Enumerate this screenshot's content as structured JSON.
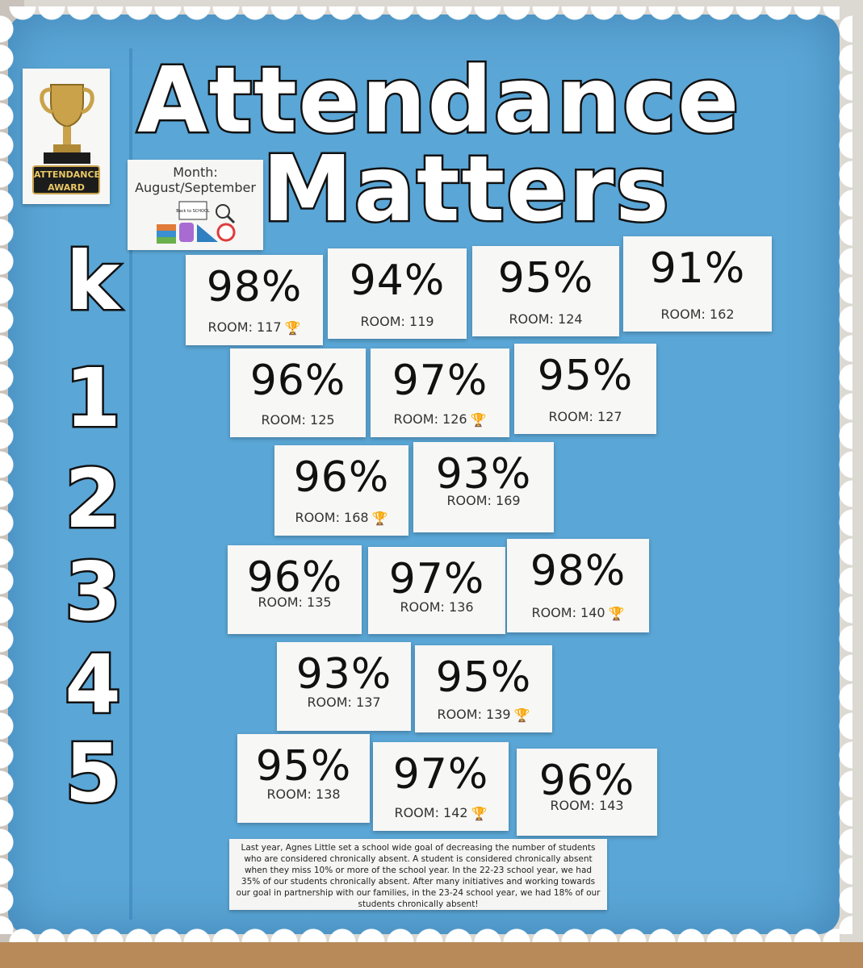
{
  "award": {
    "line1": "ATTENDANCE",
    "line2": "AWARD"
  },
  "title": {
    "line1": "Attendance",
    "line2": "Matters"
  },
  "month": {
    "label": "Month:",
    "value": "August/September",
    "badge": "Back to SCHOOL"
  },
  "grades": [
    "k",
    "1",
    "2",
    "3",
    "4",
    "5"
  ],
  "cards": [
    {
      "pct": "98%",
      "room": "ROOM: 117",
      "trophy": true
    },
    {
      "pct": "94%",
      "room": "ROOM: 119",
      "trophy": false
    },
    {
      "pct": "95%",
      "room": "ROOM: 124",
      "trophy": false
    },
    {
      "pct": "91%",
      "room": "ROOM: 162",
      "trophy": false
    },
    {
      "pct": "96%",
      "room": "ROOM: 125",
      "trophy": false
    },
    {
      "pct": "97%",
      "room": "ROOM: 126",
      "trophy": true
    },
    {
      "pct": "95%",
      "room": "ROOM: 127",
      "trophy": false
    },
    {
      "pct": "96%",
      "room": "ROOM: 168",
      "trophy": true
    },
    {
      "pct": "93%",
      "room": "ROOM: 169",
      "trophy": false
    },
    {
      "pct": "96%",
      "room": "ROOM: 135",
      "trophy": false
    },
    {
      "pct": "97%",
      "room": "ROOM: 136",
      "trophy": false
    },
    {
      "pct": "98%",
      "room": "ROOM: 140",
      "trophy": true
    },
    {
      "pct": "93%",
      "room": "ROOM: 137",
      "trophy": false
    },
    {
      "pct": "95%",
      "room": "ROOM: 139",
      "trophy": true
    },
    {
      "pct": "95%",
      "room": "ROOM: 138",
      "trophy": false
    },
    {
      "pct": "97%",
      "room": "ROOM: 142",
      "trophy": true
    },
    {
      "pct": "96%",
      "room": "ROOM: 143",
      "trophy": false
    }
  ],
  "note": "Last year, Agnes Little set a school wide goal of decreasing the number of students who are considered chronically absent. A student is considered chronically absent when they miss 10% or more of the school year. In the 22-23 school year, we had 35% of our students chronically absent. After many initiatives and working towards our goal in partnership with our families, in the 23-24 school year, we had 18% of our students chronically absent!",
  "colors": {
    "board": "#5aa6d6",
    "border": "#ffffff",
    "trophy": "#c9a24a"
  }
}
